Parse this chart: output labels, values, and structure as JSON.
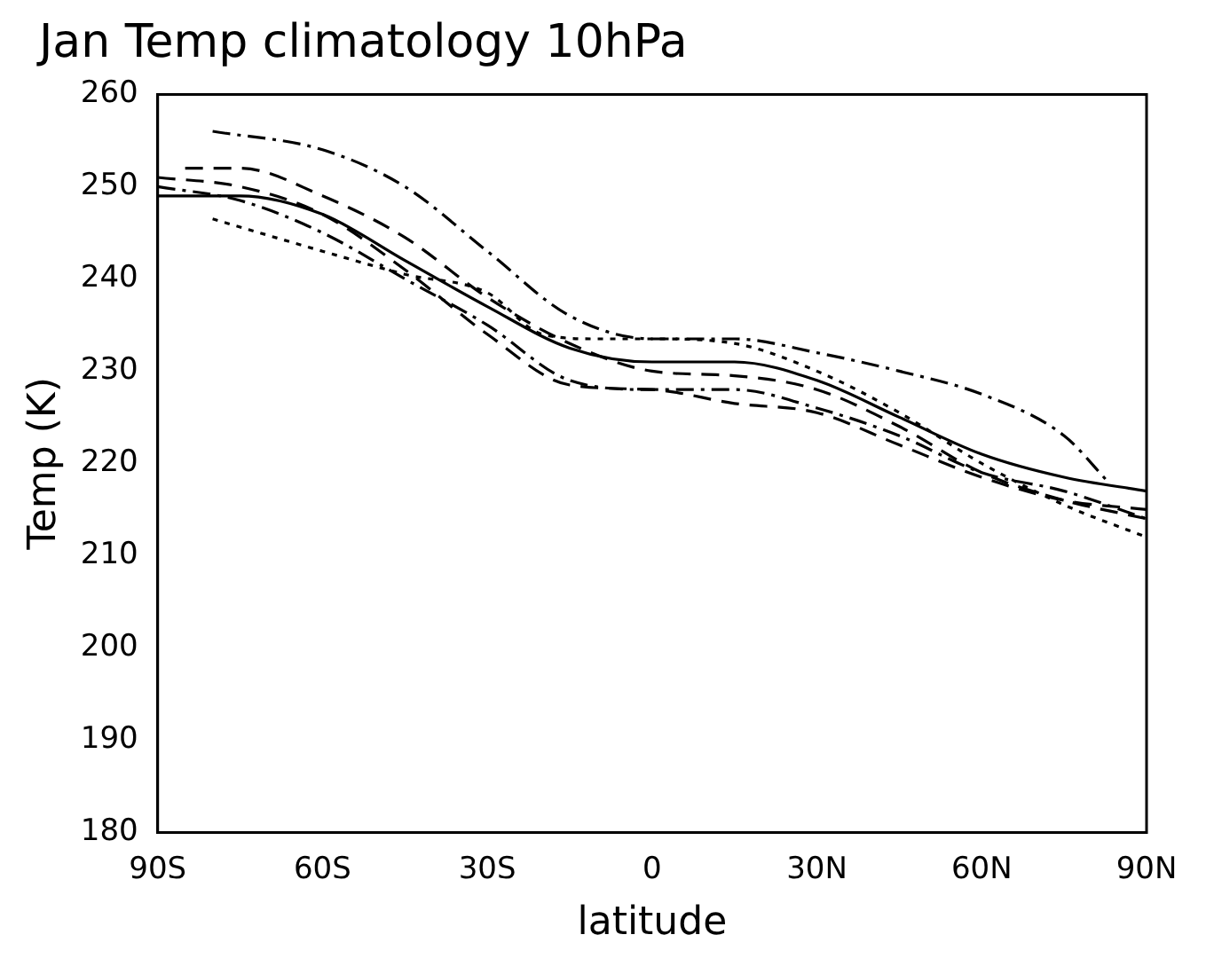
{
  "chart_data": {
    "type": "line",
    "title": "Jan Temp climatology 10hPa",
    "xlabel": "latitude",
    "ylabel": "Temp (K)",
    "xlim": [
      -90,
      90
    ],
    "xticks": [
      {
        "value": -90,
        "label": "90S"
      },
      {
        "value": -60,
        "label": "60S"
      },
      {
        "value": -30,
        "label": "30S"
      },
      {
        "value": 0,
        "label": "0"
      },
      {
        "value": 30,
        "label": "30N"
      },
      {
        "value": 60,
        "label": "60N"
      },
      {
        "value": 90,
        "label": "90N"
      }
    ],
    "ylim": [
      180,
      260
    ],
    "yticks": [
      180,
      190,
      200,
      210,
      220,
      230,
      240,
      250,
      260
    ],
    "grid": false,
    "legend": false,
    "marker": "none",
    "series": [
      {
        "color": "#000000",
        "line_style": "solid",
        "x": [
          -90,
          -75,
          -60,
          -45,
          -30,
          -15,
          0,
          15,
          30,
          45,
          60,
          75,
          90
        ],
        "values": [
          249,
          249,
          247,
          242,
          237,
          232.5,
          231,
          231,
          229,
          225,
          221,
          218.5,
          217
        ]
      },
      {
        "color": "#000000",
        "line_style": "dashdot",
        "x": [
          -80,
          -60,
          -45,
          -30,
          -15,
          0,
          15,
          30,
          45,
          60,
          75,
          83
        ],
        "values": [
          256,
          254,
          250,
          243,
          236,
          233.5,
          233.5,
          232,
          230,
          227.5,
          223,
          218
        ]
      },
      {
        "color": "#000000",
        "line_style": "dashed",
        "x": [
          -85,
          -75,
          -60,
          -45,
          -30,
          -15,
          0,
          15,
          30,
          45,
          60,
          75,
          90
        ],
        "values": [
          252,
          252,
          249,
          244.5,
          238,
          233,
          230,
          229.5,
          228,
          224,
          219,
          216,
          214
        ]
      },
      {
        "color": "#000000",
        "line_style": "dotted",
        "x": [
          -80,
          -60,
          -45,
          -30,
          -20,
          -10,
          0,
          15,
          30,
          45,
          60,
          75,
          90
        ],
        "values": [
          246.5,
          243,
          240.5,
          238.5,
          234,
          233.5,
          233.5,
          233,
          230,
          225.5,
          220,
          215.5,
          212
        ]
      },
      {
        "color": "#000000",
        "line_style": "dashdot",
        "x": [
          -90,
          -75,
          -60,
          -45,
          -30,
          -15,
          0,
          15,
          30,
          45,
          60,
          75,
          90
        ],
        "values": [
          250,
          248.5,
          245,
          240,
          235,
          229,
          228,
          228,
          226,
          223,
          219,
          217,
          214
        ]
      },
      {
        "color": "#000000",
        "line_style": "dashed",
        "x": [
          -90,
          -75,
          -60,
          -45,
          -30,
          -15,
          0,
          15,
          30,
          45,
          60,
          75,
          90
        ],
        "values": [
          251,
          250,
          247,
          241,
          234,
          228.5,
          228,
          226.5,
          225.5,
          222,
          218.5,
          216,
          215
        ]
      }
    ]
  }
}
